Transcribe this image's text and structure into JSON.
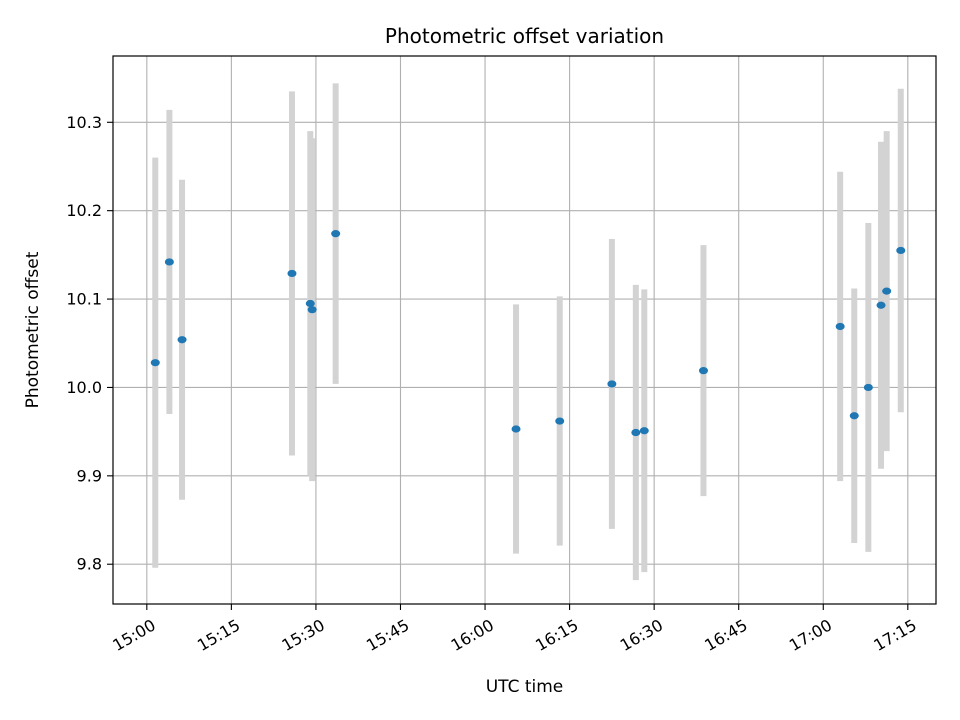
{
  "chart_data": {
    "type": "scatter",
    "title": "Photometric offset variation",
    "xlabel": "UTC time",
    "ylabel": "Photometric offset",
    "xlim": [
      "14:54",
      "17:20"
    ],
    "ylim": [
      9.755,
      10.375
    ],
    "grid": true,
    "x_ticks": [
      "15:00",
      "15:15",
      "15:30",
      "15:45",
      "16:00",
      "16:15",
      "16:30",
      "16:45",
      "17:00",
      "17:15"
    ],
    "y_ticks": [
      "9.8",
      "9.9",
      "10.0",
      "10.1",
      "10.2",
      "10.3"
    ],
    "point_color": "#1f77b4",
    "errorbar_color": "#d3d3d3",
    "points": [
      {
        "x": "15:01:30",
        "y": 10.028,
        "yerr": 0.232
      },
      {
        "x": "15:04:00",
        "y": 10.142,
        "yerr": 0.172
      },
      {
        "x": "15:06:15",
        "y": 10.054,
        "yerr": 0.181
      },
      {
        "x": "15:25:45",
        "y": 10.129,
        "yerr": 0.206
      },
      {
        "x": "15:29:00",
        "y": 10.095,
        "yerr": 0.195
      },
      {
        "x": "15:29:20",
        "y": 10.088,
        "yerr": 0.194
      },
      {
        "x": "15:33:30",
        "y": 10.174,
        "yerr": 0.17
      },
      {
        "x": "16:05:30",
        "y": 9.953,
        "yerr": 0.141
      },
      {
        "x": "16:13:15",
        "y": 9.962,
        "yerr": 0.141
      },
      {
        "x": "16:22:30",
        "y": 10.004,
        "yerr": 0.164
      },
      {
        "x": "16:26:45",
        "y": 9.949,
        "yerr": 0.167
      },
      {
        "x": "16:28:15",
        "y": 9.951,
        "yerr": 0.16
      },
      {
        "x": "16:38:45",
        "y": 10.019,
        "yerr": 0.142
      },
      {
        "x": "17:03:00",
        "y": 10.069,
        "yerr": 0.175
      },
      {
        "x": "17:05:30",
        "y": 9.968,
        "yerr": 0.144
      },
      {
        "x": "17:08:00",
        "y": 10.0,
        "yerr": 0.186
      },
      {
        "x": "17:10:15",
        "y": 10.093,
        "yerr": 0.185
      },
      {
        "x": "17:11:15",
        "y": 10.109,
        "yerr": 0.181
      },
      {
        "x": "17:13:45",
        "y": 10.155,
        "yerr": 0.183
      }
    ]
  }
}
